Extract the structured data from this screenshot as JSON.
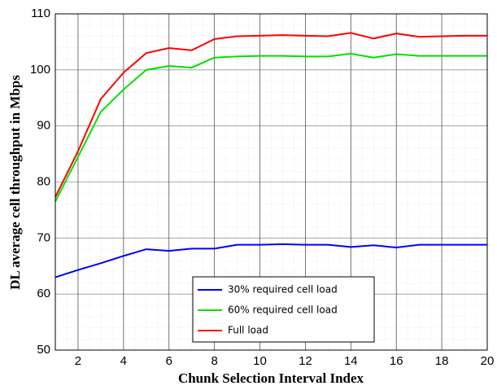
{
  "chart_data": {
    "type": "line",
    "xlabel": "Chunk Selection Interval Index",
    "ylabel": "DL average cell throughput in Mbps",
    "x": [
      1,
      2,
      3,
      4,
      5,
      6,
      7,
      8,
      9,
      10,
      11,
      12,
      13,
      14,
      15,
      16,
      17,
      18,
      19,
      20
    ],
    "series": [
      {
        "name": "30% required cell load",
        "color": "#0000ff",
        "values": [
          63,
          64.3,
          65.5,
          66.8,
          68,
          67.7,
          68.1,
          68.1,
          68.8,
          68.8,
          68.9,
          68.8,
          68.8,
          68.4,
          68.7,
          68.3,
          68.8,
          68.8,
          68.8,
          68.8
        ]
      },
      {
        "name": "60% required cell load",
        "color": "#00e000",
        "values": [
          76.5,
          84.5,
          92.5,
          96.5,
          100,
          100.7,
          100.4,
          102.2,
          102.4,
          102.5,
          102.5,
          102.4,
          102.4,
          102.9,
          102.2,
          102.8,
          102.5,
          102.5,
          102.5,
          102.5
        ]
      },
      {
        "name": "Full load",
        "color": "#ff0000",
        "values": [
          77.3,
          85.5,
          94.8,
          99.5,
          103,
          103.9,
          103.5,
          105.5,
          106,
          106.1,
          106.2,
          106.1,
          106,
          106.6,
          105.6,
          106.5,
          105.9,
          106,
          106.1,
          106.1
        ]
      }
    ],
    "xlim": [
      1,
      20
    ],
    "xticks": [
      2,
      4,
      6,
      8,
      10,
      12,
      14,
      16,
      18,
      20
    ],
    "ylim": [
      50,
      110
    ],
    "yticks": [
      50,
      60,
      70,
      80,
      90,
      100,
      110
    ],
    "grid": true,
    "legend": "bottom"
  }
}
